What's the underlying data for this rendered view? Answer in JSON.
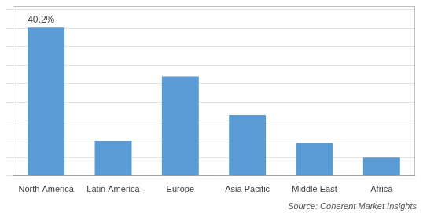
{
  "chart_data": {
    "type": "bar",
    "categories": [
      "North America",
      "Latin America",
      "Europe",
      "Asia Pacific",
      "Middle East",
      "Africa"
    ],
    "values": [
      40.2,
      9.5,
      27.0,
      16.5,
      9.0,
      5.0
    ],
    "color": "#5b9bd5",
    "ylim": [
      0,
      46
    ],
    "yticks": [
      0,
      5,
      10,
      15,
      20,
      25,
      30,
      35,
      40,
      45
    ],
    "grid": true,
    "tick_labels": "x",
    "annotations": [
      {
        "text": "40.2%",
        "x": "North America",
        "y": 40.2
      },
      {
        "text": "Source: Coherent Market Insights"
      }
    ]
  }
}
